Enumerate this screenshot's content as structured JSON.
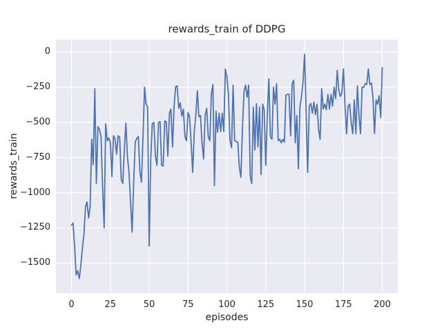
{
  "figure": {
    "title": "rewards_train of DDPG"
  },
  "chart_data": {
    "type": "line",
    "title": "rewards_train of DDPG",
    "xlabel": "episodes",
    "ylabel": "rewards_train",
    "x_start": 0,
    "x_step": 1,
    "values": [
      -1230,
      -1215,
      -1380,
      -1585,
      -1555,
      -1610,
      -1520,
      -1395,
      -1300,
      -1100,
      -1065,
      -1180,
      -1100,
      -620,
      -800,
      -260,
      -935,
      -530,
      -550,
      -600,
      -950,
      -1250,
      -510,
      -630,
      -610,
      -640,
      -885,
      -595,
      -615,
      -725,
      -595,
      -605,
      -905,
      -935,
      -695,
      -505,
      -740,
      -855,
      -1065,
      -1280,
      -935,
      -640,
      -615,
      -600,
      -845,
      -925,
      -615,
      -250,
      -370,
      -390,
      -1380,
      -760,
      -510,
      -500,
      -740,
      -805,
      -500,
      -495,
      -805,
      -810,
      -490,
      -495,
      -740,
      -435,
      -405,
      -675,
      -390,
      -245,
      -240,
      -400,
      -360,
      -455,
      -405,
      -600,
      -630,
      -430,
      -460,
      -650,
      -855,
      -565,
      -450,
      -275,
      -460,
      -450,
      -645,
      -760,
      -450,
      -400,
      -600,
      -630,
      -300,
      -230,
      -950,
      -420,
      -570,
      -435,
      -565,
      -435,
      -565,
      -120,
      -175,
      -300,
      -630,
      -680,
      -235,
      -630,
      -635,
      -640,
      -815,
      -890,
      -550,
      -280,
      -235,
      -320,
      -235,
      -880,
      -935,
      -390,
      -695,
      -365,
      -675,
      -390,
      -870,
      -370,
      -410,
      -805,
      -450,
      -190,
      -600,
      -620,
      -250,
      -370,
      -225,
      -630,
      -620,
      -645,
      -620,
      -640,
      -305,
      -300,
      -300,
      -595,
      -225,
      -200,
      -645,
      -450,
      -830,
      -385,
      -320,
      -210,
      -15,
      -435,
      -855,
      -385,
      -365,
      -435,
      -355,
      -445,
      -370,
      -550,
      -620,
      -260,
      -405,
      -370,
      -410,
      -300,
      -405,
      -300,
      -385,
      -250,
      -330,
      -130,
      -270,
      -315,
      -290,
      -120,
      -370,
      -580,
      -385,
      -370,
      -500,
      -580,
      -340,
      -580,
      -240,
      -450,
      -580,
      -250,
      -250,
      -225,
      -230,
      -120,
      -230,
      -220,
      -320,
      -580,
      -340,
      -370,
      -310,
      -465,
      -110
    ],
    "xlim": [
      -10,
      210
    ],
    "ylim": [
      -1715,
      88
    ],
    "xticks": [
      0,
      25,
      50,
      75,
      100,
      125,
      150,
      175,
      200
    ],
    "yticks": [
      0,
      -250,
      -500,
      -750,
      -1000,
      -1250,
      -1500
    ],
    "xtick_labels": [
      "0",
      "25",
      "50",
      "75",
      "100",
      "125",
      "150",
      "175",
      "200"
    ],
    "ytick_labels": [
      "0",
      "−250",
      "−500",
      "−750",
      "−1000",
      "−1250",
      "−1500"
    ],
    "grid": true,
    "legend": null,
    "line_color": "#4C72B0",
    "line_width": 1.8,
    "axes_background": "#EAEAF2",
    "grid_color": "#FFFFFF",
    "text_color": "#262626"
  }
}
